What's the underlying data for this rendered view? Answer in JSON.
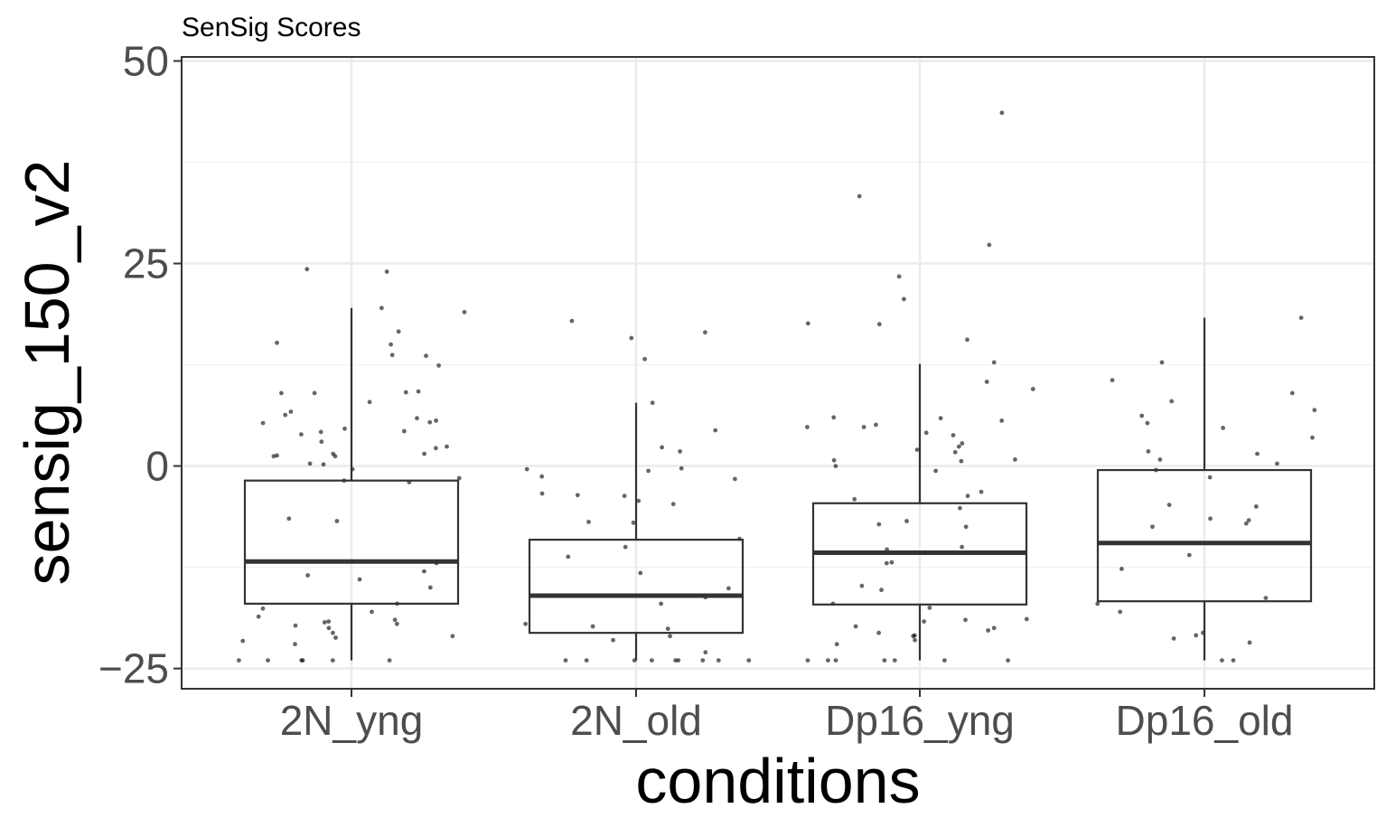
{
  "chart_data": {
    "type": "box",
    "title": "SenSig Scores",
    "xlabel": "conditions",
    "ylabel": "sensig_150_v2",
    "ylim": [
      -27.5,
      50.5
    ],
    "yticks": [
      -25,
      0,
      25,
      50
    ],
    "ytick_labels": [
      "−25",
      "0",
      "25",
      "50"
    ],
    "grid": true,
    "categories": [
      "2N_yng",
      "2N_old",
      "Dp16_yng",
      "Dp16_old"
    ],
    "boxes": [
      {
        "category": "2N_yng",
        "whisker_low": -24,
        "q1": -17,
        "median": -11.8,
        "q3": -1.8,
        "whisker_high": 19.5
      },
      {
        "category": "2N_old",
        "whisker_low": -24,
        "q1": -20.6,
        "median": -16,
        "q3": -9.1,
        "whisker_high": 7.8
      },
      {
        "category": "Dp16_yng",
        "whisker_low": -24,
        "q1": -17.1,
        "median": -10.7,
        "q3": -4.6,
        "whisker_high": 12.6
      },
      {
        "category": "Dp16_old",
        "whisker_low": -24,
        "q1": -16.7,
        "median": -9.5,
        "q3": -0.5,
        "whisker_high": 18.3
      }
    ],
    "points": [
      {
        "category": "2N_yng",
        "values": [
          24,
          24.3,
          19.5,
          19,
          13.7,
          15,
          15.2,
          12.4,
          16.6,
          13.6,
          9.1,
          9,
          9.2,
          9,
          7.9,
          6.7,
          6.3,
          5.9,
          5.6,
          5.4,
          5.3,
          4.6,
          4.3,
          4.2,
          3.9,
          3,
          2.4,
          2.2,
          1.5,
          1.2,
          1.5,
          1.3,
          1.2,
          0.3,
          0.2,
          -0.4,
          -1.5,
          -1.8,
          -2,
          -6.5,
          -6.8,
          -12,
          -13,
          -13.5,
          -14,
          -15,
          -17,
          -17.6,
          -18,
          -18.6,
          -19,
          -19.2,
          -19.5,
          -19.7,
          -19.3,
          -20,
          -20.6,
          -21,
          -21.2,
          -21.6,
          -22,
          -24,
          -24,
          -24,
          -24,
          -24,
          -24
        ]
      },
      {
        "category": "2N_old",
        "values": [
          17.9,
          16.5,
          15.8,
          13.2,
          4.4,
          2.3,
          -0.3,
          -0.4,
          -0.6,
          -3.7,
          -4.3,
          -4.7,
          -6.9,
          -7,
          -9,
          -11.2,
          -13.2,
          -15.1,
          -17,
          -19.5,
          -20.1,
          -21,
          -21.5,
          -23,
          -24,
          -24,
          -24,
          -24,
          -24,
          -24,
          -24,
          -24,
          -24,
          7.8,
          1.8,
          -1.3,
          -1.6,
          -3.4,
          -3.6,
          -10,
          -16.2,
          -19.8
        ]
      },
      {
        "category": "Dp16_yng",
        "values": [
          43.6,
          33.3,
          27.3,
          23.4,
          20.6,
          17.6,
          17.5,
          15.6,
          12.8,
          10.4,
          9.5,
          5.9,
          5.6,
          5.1,
          4.8,
          4.8,
          4.1,
          3.8,
          2.8,
          2.4,
          2,
          1.7,
          0.8,
          0.6,
          0,
          -0.6,
          -4.1,
          -5.2,
          -6.8,
          -7.2,
          -10,
          -10.3,
          -11.9,
          -14.8,
          -15.3,
          -17,
          -17.5,
          -18.9,
          -19,
          -19.2,
          -20,
          -20.3,
          -20.6,
          -20.9,
          -21.5,
          -22,
          -24,
          -24,
          -24,
          -24,
          -24,
          -24,
          -24,
          6,
          0.7,
          -3.2,
          -3.7,
          -7.5,
          -12,
          -19.8,
          -21
        ]
      },
      {
        "category": "Dp16_old",
        "values": [
          18.3,
          12.8,
          10.6,
          9,
          8,
          6.9,
          6.2,
          5.3,
          4.7,
          3.5,
          1.8,
          1.5,
          0.8,
          0.3,
          -0.5,
          -1.4,
          -5,
          -6.5,
          -6.7,
          -7.1,
          -7.5,
          -12.7,
          -16.3,
          -17,
          -18,
          -20.6,
          -20.9,
          -21.3,
          -21.8,
          -24,
          -24,
          -4.8,
          -11
        ]
      }
    ]
  }
}
